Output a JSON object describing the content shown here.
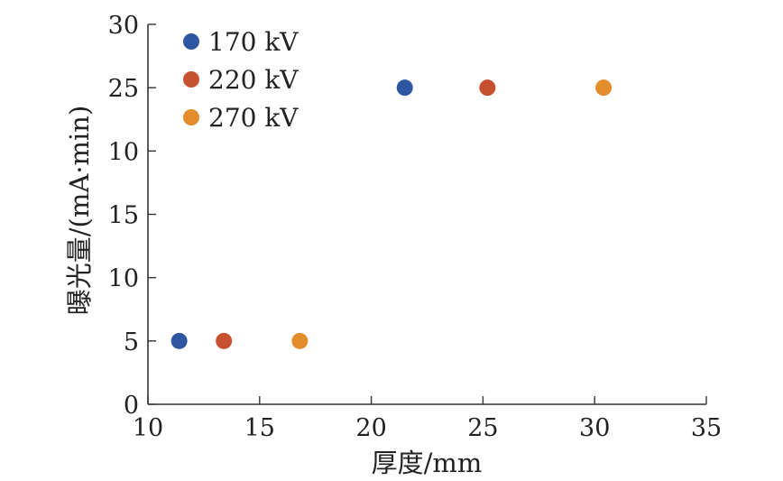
{
  "chart_data": {
    "type": "scatter",
    "title": "",
    "xlabel": "厚度/mm",
    "ylabel": "曝光量/(mA·min)",
    "xlim": [
      10,
      35
    ],
    "ylim": [
      0,
      30
    ],
    "x_ticks": [
      10,
      15,
      20,
      25,
      30,
      35
    ],
    "y_ticks": [
      0,
      5,
      10,
      15,
      25,
      30
    ],
    "y_tick_labels": [
      "0",
      "5",
      "10",
      "15",
      "10",
      "25",
      "30"
    ],
    "y_tick_values": [
      0,
      5,
      10,
      15,
      20,
      25,
      30
    ],
    "grid": false,
    "legend_position": "top-left",
    "series": [
      {
        "name": "170 kV",
        "color": "#2f56a0",
        "points": [
          {
            "x": 11.4,
            "y": 5
          },
          {
            "x": 21.5,
            "y": 25
          }
        ]
      },
      {
        "name": "220 kV",
        "color": "#c6502f",
        "points": [
          {
            "x": 13.4,
            "y": 5
          },
          {
            "x": 25.2,
            "y": 25
          }
        ]
      },
      {
        "name": "270 kV",
        "color": "#e38c2c",
        "points": [
          {
            "x": 16.8,
            "y": 5
          },
          {
            "x": 30.4,
            "y": 25
          }
        ]
      }
    ]
  }
}
